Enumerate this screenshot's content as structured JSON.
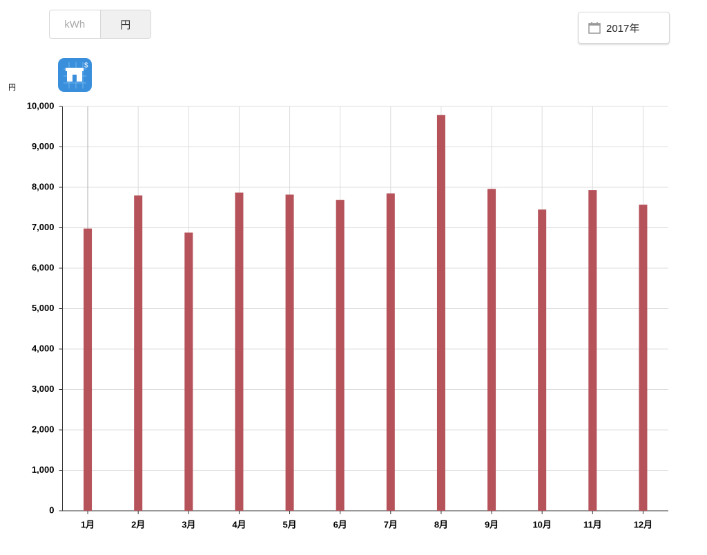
{
  "ui": {
    "unit_toggle": [
      "kWh",
      "円"
    ],
    "selected_unit": "円",
    "period": "2017年"
  },
  "chart_data": {
    "type": "bar",
    "y_unit": "円",
    "categories": [
      "1月",
      "2月",
      "3月",
      "4月",
      "5月",
      "6月",
      "7月",
      "8月",
      "9月",
      "10月",
      "11月",
      "12月"
    ],
    "values": [
      6980,
      7800,
      6880,
      7870,
      7820,
      7690,
      7850,
      9790,
      7960,
      7450,
      7930,
      7570
    ],
    "color": "#b5525a",
    "ylim": [
      0,
      10000
    ],
    "yticks": [
      0,
      {
        "value": 1000,
        "label": "1,000"
      },
      {
        "value": 2000,
        "label": "2,000"
      },
      {
        "value": 3000,
        "label": "3,000"
      },
      {
        "value": 4000,
        "label": "4,000"
      },
      {
        "value": 5000,
        "label": "5,000"
      },
      {
        "value": 6000,
        "label": "6,000"
      },
      {
        "value": 7000,
        "label": "7,000"
      },
      {
        "value": 8000,
        "label": "8,000"
      },
      {
        "value": 9000,
        "label": "9,000"
      },
      {
        "value": 10000,
        "label": "10,000"
      }
    ],
    "grid": true
  }
}
